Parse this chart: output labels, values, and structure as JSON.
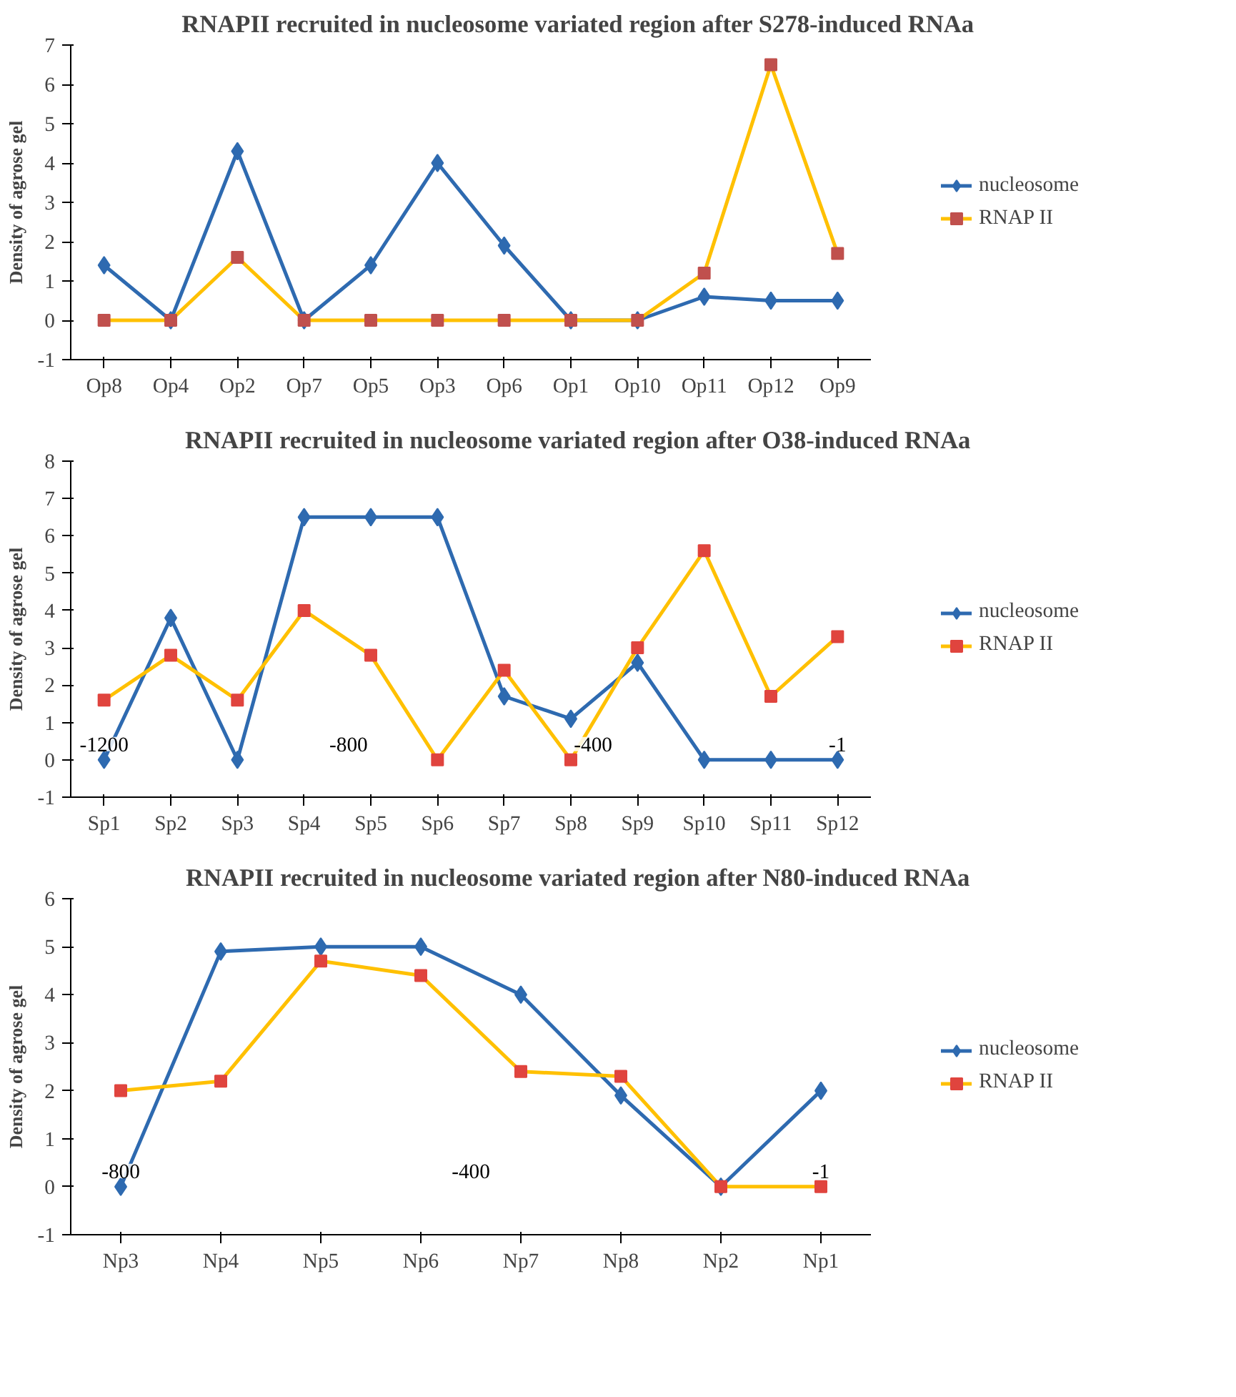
{
  "chart_data": [
    {
      "type": "line",
      "title": "RNAPII recruited in nucleosome variated region after S278-induced RNAa",
      "ylabel": "Density of agrose gel",
      "categories": [
        "Op8",
        "Op4",
        "Op2",
        "Op7",
        "Op5",
        "Op3",
        "Op6",
        "Op1",
        "Op10",
        "Op11",
        "Op12",
        "Op9"
      ],
      "ylim": [
        -1,
        7
      ],
      "yticks": [
        -1,
        0,
        1,
        2,
        3,
        4,
        5,
        6,
        7
      ],
      "grid": false,
      "legend": "right",
      "series": [
        {
          "name": "nucleosome",
          "color": "#2e6ab0",
          "marker": "diamond",
          "values": [
            1.4,
            0,
            4.3,
            0,
            1.4,
            4.0,
            1.9,
            0,
            0,
            0.6,
            0.5,
            0.5
          ]
        },
        {
          "name": "RNAP II",
          "color": "#ffc000",
          "colors": [
            "#c0504d",
            "#c0504d",
            "#c0504d",
            "#c0504d",
            "#c0504d",
            "#c0504d",
            "#c0504d",
            "#c0504d",
            "#c0504d",
            "#c0504d",
            "#c0504d",
            "#c0504d"
          ],
          "marker": "square",
          "values": [
            0,
            0,
            1.6,
            0,
            0,
            0,
            0,
            0,
            0,
            1.2,
            6.5,
            1.7
          ]
        }
      ]
    },
    {
      "type": "line",
      "title": "RNAPII recruited in nucleosome variated region after O38-induced RNAa",
      "ylabel": "Density of agrose gel",
      "categories": [
        "Sp1",
        "Sp2",
        "Sp3",
        "Sp4",
        "Sp5",
        "Sp6",
        "Sp7",
        "Sp8",
        "Sp9",
        "Sp10",
        "Sp11",
        "Sp12"
      ],
      "ylim": [
        -1,
        8
      ],
      "yticks": [
        -1,
        0,
        1,
        2,
        3,
        4,
        5,
        6,
        7,
        8
      ],
      "grid": false,
      "legend": "right",
      "annotations": [
        "-1200",
        "-800",
        "-400",
        "-1"
      ],
      "series": [
        {
          "name": "nucleosome",
          "color": "#2e6ab0",
          "marker": "diamond",
          "values": [
            0,
            3.8,
            0,
            6.5,
            6.5,
            6.5,
            1.7,
            1.1,
            2.6,
            0,
            0,
            0
          ]
        },
        {
          "name": "RNAP II",
          "color": "#ffc000",
          "colors": [
            "#e0443e",
            "#e0443e",
            "#e0443e",
            "#e0443e",
            "#e0443e",
            "#e0443e",
            "#e0443e",
            "#e0443e",
            "#e0443e",
            "#e0443e",
            "#e0443e",
            "#e0443e"
          ],
          "marker": "square",
          "values": [
            1.6,
            2.8,
            1.6,
            4.0,
            2.8,
            0,
            2.4,
            0,
            3.0,
            5.6,
            1.7,
            3.3
          ]
        }
      ]
    },
    {
      "type": "line",
      "title": "RNAPII recruited in nucleosome variated region after N80-induced RNAa",
      "ylabel": "Density of agrose gel",
      "categories": [
        "Np3",
        "Np4",
        "Np5",
        "Np6",
        "Np7",
        "Np8",
        "Np2",
        "Np1"
      ],
      "ylim": [
        -1,
        6
      ],
      "yticks": [
        -1,
        0,
        1,
        2,
        3,
        4,
        5,
        6
      ],
      "grid": false,
      "legend": "right",
      "annotations": [
        "-800",
        "-400",
        "-1"
      ],
      "series": [
        {
          "name": "nucleosome",
          "color": "#2e6ab0",
          "marker": "diamond",
          "values": [
            0,
            4.9,
            5.0,
            5.0,
            4.0,
            1.9,
            0,
            2.0
          ]
        },
        {
          "name": "RNAP II",
          "color": "#ffc000",
          "colors": [
            "#e0443e",
            "#e0443e",
            "#e0443e",
            "#e0443e",
            "#e0443e",
            "#e0443e",
            "#e0443e",
            "#e0443e"
          ],
          "marker": "square",
          "values": [
            2.0,
            2.2,
            4.7,
            4.4,
            2.4,
            2.3,
            0,
            0
          ]
        }
      ]
    }
  ]
}
